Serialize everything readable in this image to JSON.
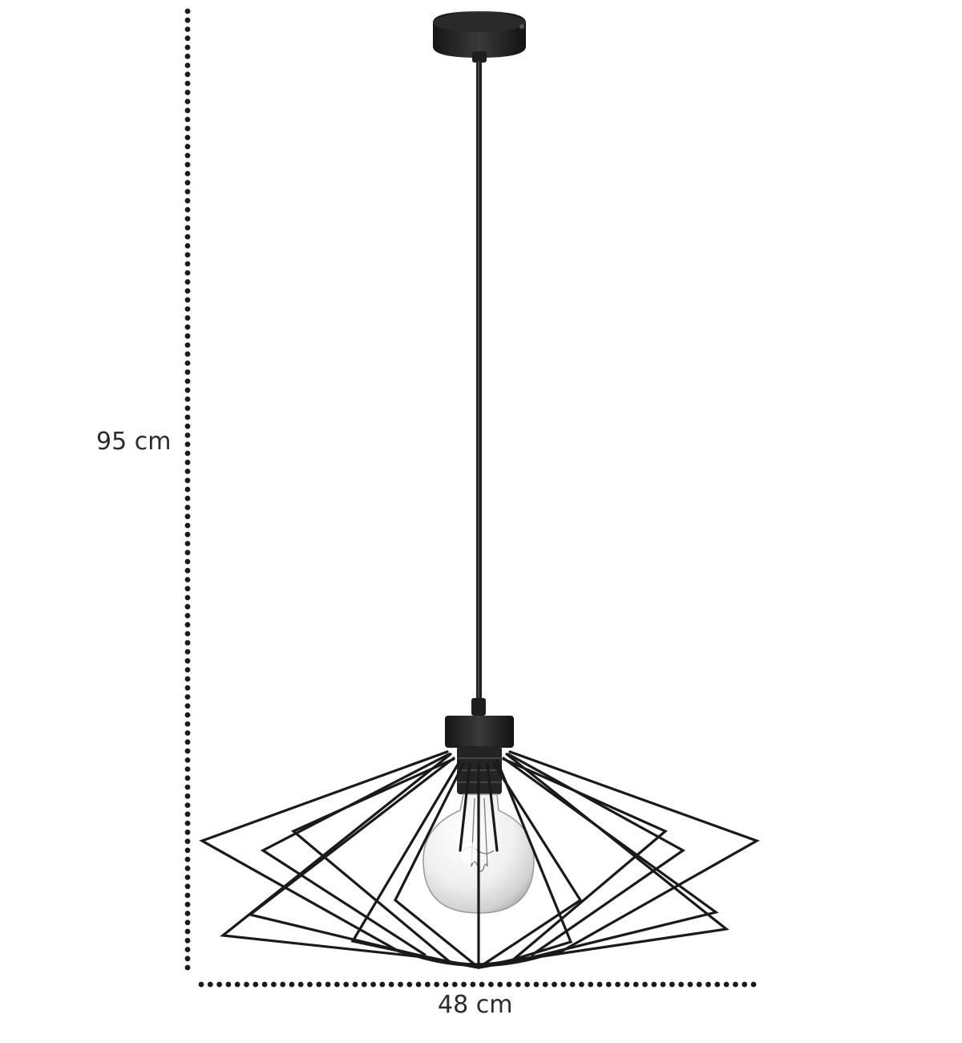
{
  "dimensions": {
    "height_label": "95 cm",
    "width_label": "48 cm"
  },
  "colors": {
    "background": "#ffffff",
    "metal": "#1e1e1e",
    "dots": "#1a1a1a",
    "text": "#2b2b2b",
    "bulb_glass": "#e9e9e9"
  },
  "icons": {
    "lamp": "pendant-lamp-illustration",
    "bulb": "edison-bulb"
  }
}
